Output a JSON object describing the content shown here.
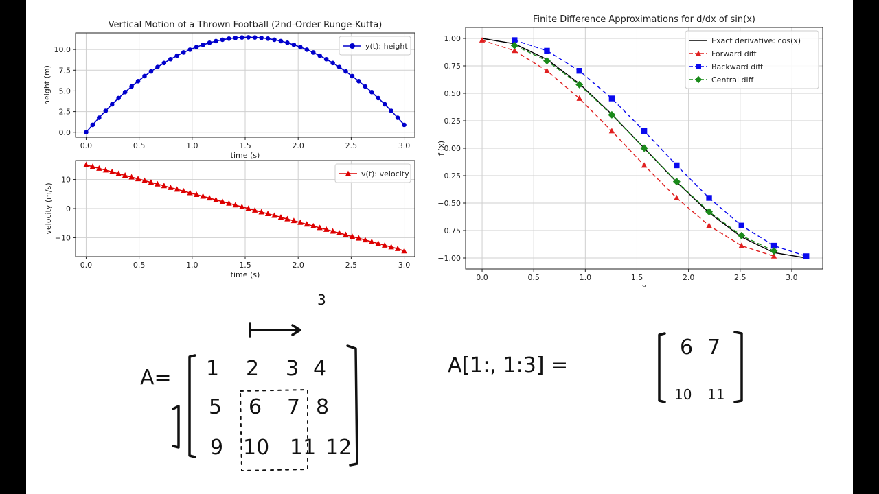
{
  "chart_data": [
    {
      "type": "line",
      "title": "Vertical Motion of a Thrown Football (2nd-Order Runge-Kutta)",
      "xlabel": "time (s)",
      "ylabel": "height (m)",
      "xlim": [
        -0.1,
        3.1
      ],
      "ylim": [
        -0.6,
        12.0
      ],
      "xticks": [
        0.0,
        0.5,
        1.0,
        1.5,
        2.0,
        2.5,
        3.0
      ],
      "xtick_labels": [
        "0.0",
        "0.5",
        "1.0",
        "1.5",
        "2.0",
        "2.5",
        "3.0"
      ],
      "yticks": [
        0.0,
        2.5,
        5.0,
        7.5,
        10.0
      ],
      "ytick_labels": [
        "0.0",
        "2.5",
        "5.0",
        "7.5",
        "10.0"
      ],
      "grid": true,
      "legend_position": "top-right",
      "series": [
        {
          "name": "y(t): height",
          "color": "#0000cc",
          "marker": "circle",
          "linestyle": "solid",
          "x": [
            0.0,
            0.0612,
            0.1224,
            0.1837,
            0.2449,
            0.3061,
            0.3673,
            0.4286,
            0.4898,
            0.551,
            0.6122,
            0.6735,
            0.7347,
            0.7959,
            0.8571,
            0.9184,
            0.9796,
            1.0408,
            1.102,
            1.1633,
            1.2245,
            1.2857,
            1.3469,
            1.4082,
            1.4694,
            1.5306,
            1.5918,
            1.6531,
            1.7143,
            1.7755,
            1.8367,
            1.898,
            1.9592,
            2.0204,
            2.0816,
            2.1429,
            2.2041,
            2.2653,
            2.3265,
            2.3878,
            2.449,
            2.5102,
            2.5714,
            2.6327,
            2.6939,
            2.7551,
            2.8163,
            2.8776,
            2.9388,
            3.0
          ],
          "y": [
            0.0,
            0.9,
            1.76,
            2.59,
            3.38,
            4.13,
            4.85,
            5.53,
            6.17,
            6.78,
            7.35,
            7.88,
            8.37,
            8.83,
            9.25,
            9.64,
            9.98,
            10.3,
            10.57,
            10.81,
            11.01,
            11.18,
            11.31,
            11.4,
            11.45,
            11.47,
            11.45,
            11.4,
            11.31,
            11.18,
            11.01,
            10.81,
            10.57,
            10.3,
            9.98,
            9.64,
            9.25,
            8.83,
            8.37,
            7.88,
            7.35,
            6.78,
            6.17,
            5.53,
            4.85,
            4.13,
            3.38,
            2.59,
            1.76,
            0.9
          ]
        }
      ]
    },
    {
      "type": "line",
      "title": "",
      "xlabel": "time (s)",
      "ylabel": "velocity (m/s)",
      "xlim": [
        -0.1,
        3.1
      ],
      "ylim": [
        -16.5,
        16.5
      ],
      "xticks": [
        0.0,
        0.5,
        1.0,
        1.5,
        2.0,
        2.5,
        3.0
      ],
      "xtick_labels": [
        "0.0",
        "0.5",
        "1.0",
        "1.5",
        "2.0",
        "2.5",
        "3.0"
      ],
      "yticks": [
        -10,
        0,
        10
      ],
      "ytick_labels": [
        "−10",
        "0",
        "10"
      ],
      "grid": true,
      "legend_position": "top-right",
      "series": [
        {
          "name": "v(t): velocity",
          "color": "#dd0000",
          "marker": "triangle",
          "linestyle": "solid",
          "x": [
            0.0,
            0.0612,
            0.1224,
            0.1837,
            0.2449,
            0.3061,
            0.3673,
            0.4286,
            0.4898,
            0.551,
            0.6122,
            0.6735,
            0.7347,
            0.7959,
            0.8571,
            0.9184,
            0.9796,
            1.0408,
            1.102,
            1.1633,
            1.2245,
            1.2857,
            1.3469,
            1.4082,
            1.4694,
            1.5306,
            1.5918,
            1.6531,
            1.7143,
            1.7755,
            1.8367,
            1.898,
            1.9592,
            2.0204,
            2.0816,
            2.1429,
            2.2041,
            2.2653,
            2.3265,
            2.3878,
            2.449,
            2.5102,
            2.5714,
            2.6327,
            2.6939,
            2.7551,
            2.8163,
            2.8776,
            2.9388,
            3.0
          ],
          "y": [
            15.0,
            14.4,
            13.8,
            13.2,
            12.6,
            12.0,
            11.4,
            10.8,
            10.2,
            9.6,
            9.0,
            8.4,
            7.8,
            7.2,
            6.6,
            6.0,
            5.4,
            4.8,
            4.2,
            3.6,
            3.0,
            2.4,
            1.8,
            1.2,
            0.6,
            0.0,
            -0.6,
            -1.2,
            -1.8,
            -2.4,
            -3.0,
            -3.6,
            -4.2,
            -4.8,
            -5.4,
            -6.0,
            -6.6,
            -7.2,
            -7.8,
            -8.4,
            -9.0,
            -9.6,
            -10.2,
            -10.8,
            -11.4,
            -12.0,
            -12.6,
            -13.2,
            -13.8,
            -14.6
          ]
        }
      ]
    },
    {
      "type": "line",
      "title": "Finite Difference Approximations for d/dx of sin(x)",
      "xlabel": "x",
      "ylabel": "f'(x)",
      "xlim": [
        -0.16,
        3.3
      ],
      "ylim": [
        -1.1,
        1.1
      ],
      "xticks": [
        0.0,
        0.5,
        1.0,
        1.5,
        2.0,
        2.5,
        3.0
      ],
      "xtick_labels": [
        "0.0",
        "0.5",
        "1.0",
        "1.5",
        "2.0",
        "2.5",
        "3.0"
      ],
      "yticks": [
        1.0,
        0.75,
        0.5,
        0.25,
        0.0,
        -0.25,
        -0.5,
        -0.75,
        -1.0
      ],
      "ytick_labels": [
        "1.00",
        "0.75",
        "0.50",
        "0.25",
        "0.00",
        "−0.25",
        "−0.50",
        "−0.75",
        "−1.00"
      ],
      "grid": true,
      "legend_position": "top-right",
      "series": [
        {
          "name": "Exact derivative: cos(x)",
          "color": "#000000",
          "marker": "none",
          "linestyle": "solid",
          "x": [
            0.0,
            0.3142,
            0.6283,
            0.9425,
            1.2566,
            1.5708,
            1.885,
            2.1991,
            2.5133,
            2.8274,
            3.1416
          ],
          "y": [
            1.0,
            0.951,
            0.809,
            0.588,
            0.309,
            0.0,
            -0.309,
            -0.588,
            -0.809,
            -0.951,
            -1.0
          ]
        },
        {
          "name": "Forward diff",
          "color": "#e02020",
          "marker": "triangle",
          "linestyle": "dashed",
          "x": [
            0.0,
            0.3142,
            0.6283,
            0.9425,
            1.2566,
            1.5708,
            1.885,
            2.1991,
            2.5133,
            2.8274
          ],
          "y": [
            0.984,
            0.888,
            0.705,
            0.453,
            0.156,
            -0.156,
            -0.453,
            -0.705,
            -0.888,
            -0.984
          ]
        },
        {
          "name": "Backward diff",
          "color": "#0a0aee",
          "marker": "square",
          "linestyle": "dashed",
          "x": [
            0.3142,
            0.6283,
            0.9425,
            1.2566,
            1.5708,
            1.885,
            2.1991,
            2.5133,
            2.8274,
            3.1416
          ],
          "y": [
            0.984,
            0.888,
            0.705,
            0.453,
            0.156,
            -0.156,
            -0.453,
            -0.705,
            -0.888,
            -0.984
          ]
        },
        {
          "name": "Central diff",
          "color": "#1a8a1a",
          "marker": "diamond",
          "linestyle": "dashed",
          "x": [
            0.3142,
            0.6283,
            0.9425,
            1.2566,
            1.5708,
            1.885,
            2.1991,
            2.5133,
            2.8274
          ],
          "y": [
            0.936,
            0.796,
            0.579,
            0.304,
            0.0,
            -0.304,
            -0.579,
            -0.796,
            -0.936
          ]
        }
      ]
    }
  ],
  "whiteboard": {
    "label_a": "A=",
    "slice_expr": "A[1:, 1:3] =",
    "step_label": "3",
    "matrix": [
      [
        "1",
        "2",
        "3",
        "4"
      ],
      [
        "5",
        "6",
        "7",
        "8"
      ],
      [
        "9",
        "10",
        "11",
        "12"
      ]
    ],
    "result": [
      [
        "6",
        "7"
      ],
      [
        "10",
        "11"
      ]
    ]
  }
}
